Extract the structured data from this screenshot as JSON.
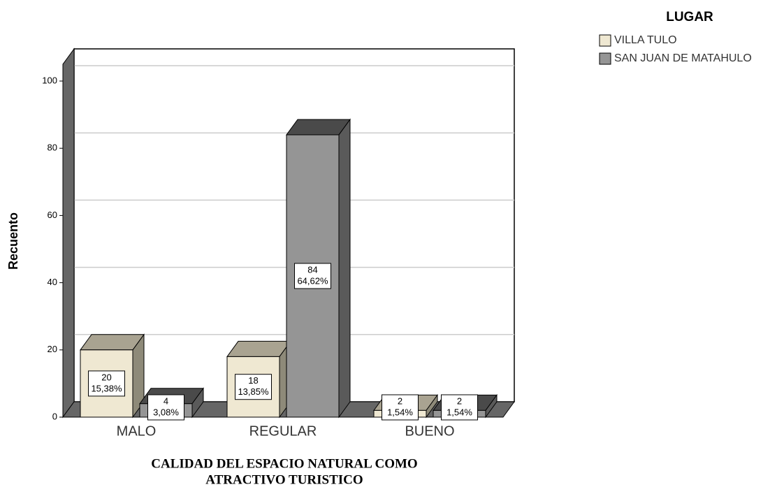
{
  "chart_data": {
    "type": "bar3d",
    "ylabel": "Recuento",
    "xlabel": [
      "CALIDAD DEL ESPACIO NATURAL COMO",
      "ATRACTIVO TURISTICO"
    ],
    "legend_title": "LUGAR",
    "legend": "top-right",
    "categories": [
      "MALO",
      "REGULAR",
      "BUENO"
    ],
    "series": [
      {
        "name": "VILLA TULO",
        "color": "#efe8d2",
        "values": [
          20,
          18,
          2
        ],
        "percent_labels": [
          "15,38%",
          "13,85%",
          "1,54%"
        ]
      },
      {
        "name": "SAN JUAN DE MATAHULO",
        "color": "#959595",
        "values": [
          4,
          84,
          2
        ],
        "percent_labels": [
          "3,08%",
          "64,62%",
          "1,54%"
        ]
      }
    ],
    "ylim": [
      0,
      105
    ],
    "yticks": [
      0,
      20,
      40,
      60,
      80,
      100
    ],
    "grid": true
  }
}
